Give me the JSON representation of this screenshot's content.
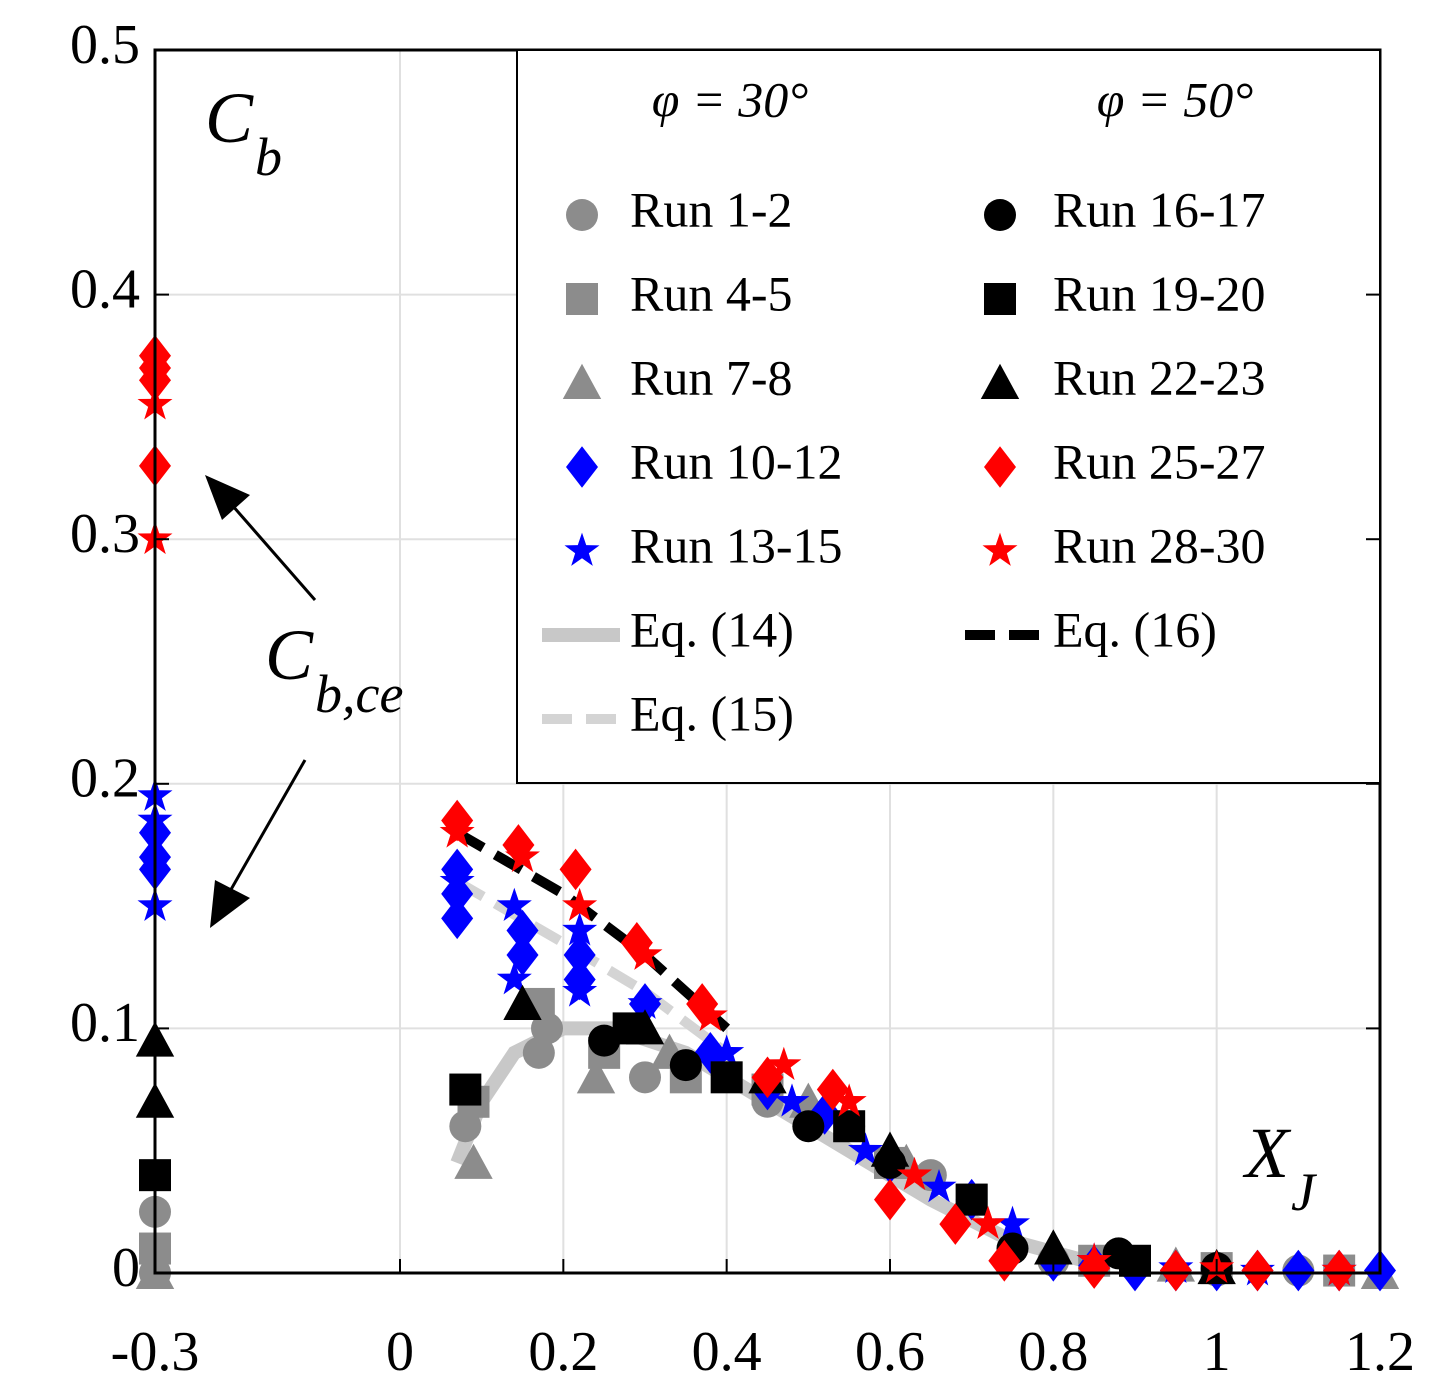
{
  "chart_data": {
    "type": "scatter",
    "xlim": [
      -0.3,
      1.2
    ],
    "ylim": [
      0,
      0.5
    ],
    "xticks": [
      -0.3,
      0,
      0.2,
      0.4,
      0.6,
      0.8,
      1,
      1.2
    ],
    "yticks": [
      0,
      0.1,
      0.2,
      0.3,
      0.4,
      0.5
    ],
    "grid": true,
    "xlabel": {
      "main": "X",
      "sub": "J"
    },
    "ylabel": {
      "main": "C",
      "sub": "b"
    },
    "annotation": {
      "main": "C",
      "sub": "b,ce"
    },
    "legend_headers": [
      "φ = 30°",
      "φ = 50°"
    ],
    "series": [
      {
        "name": "Run 1-2",
        "color": "#8c8c8c",
        "marker": "circle",
        "x": [
          -0.3,
          -0.3,
          0.08,
          0.17,
          0.18,
          0.3,
          0.45,
          0.55,
          0.65,
          0.8,
          0.9,
          1.0,
          1.1
        ],
        "values": [
          0.025,
          0.0,
          0.06,
          0.09,
          0.1,
          0.08,
          0.07,
          0.06,
          0.04,
          0.005,
          0.003,
          0.001,
          0.001
        ]
      },
      {
        "name": "Run 4-5",
        "color": "#8c8c8c",
        "marker": "square",
        "x": [
          -0.3,
          0.09,
          0.17,
          0.25,
          0.35,
          0.45,
          0.6,
          0.7,
          0.85,
          1.0,
          1.15
        ],
        "values": [
          0.01,
          0.07,
          0.11,
          0.09,
          0.08,
          0.075,
          0.045,
          0.03,
          0.005,
          0.002,
          0.001
        ]
      },
      {
        "name": "Run 7-8",
        "color": "#8c8c8c",
        "marker": "triangle",
        "x": [
          -0.3,
          0.09,
          0.24,
          0.33,
          0.5,
          0.62,
          0.8,
          0.95,
          1.2
        ],
        "values": [
          0.0,
          0.045,
          0.08,
          0.09,
          0.07,
          0.045,
          0.01,
          0.003,
          0.0
        ]
      },
      {
        "name": "Run 10-12",
        "color": "#0000ff",
        "marker": "diamond",
        "x": [
          -0.3,
          -0.3,
          -0.3,
          0.07,
          0.07,
          0.07,
          0.15,
          0.15,
          0.22,
          0.22,
          0.3,
          0.38,
          0.45,
          0.52,
          0.6,
          0.7,
          0.75,
          0.8,
          0.85,
          0.9,
          0.95,
          1.0,
          1.05,
          1.1,
          1.15,
          1.2
        ],
        "values": [
          0.165,
          0.17,
          0.18,
          0.145,
          0.155,
          0.165,
          0.13,
          0.14,
          0.12,
          0.13,
          0.11,
          0.09,
          0.075,
          0.065,
          0.045,
          0.03,
          0.01,
          0.005,
          0.003,
          0.001,
          0.001,
          0.001,
          0.001,
          0.001,
          0.001,
          0.001
        ]
      },
      {
        "name": "Run 13-15",
        "color": "#0000ff",
        "marker": "star",
        "x": [
          -0.3,
          -0.3,
          -0.3,
          0.07,
          0.14,
          0.14,
          0.22,
          0.22,
          0.3,
          0.4,
          0.48,
          0.57,
          0.66,
          0.75,
          0.85,
          0.95,
          1.05,
          1.15
        ],
        "values": [
          0.15,
          0.185,
          0.195,
          0.16,
          0.12,
          0.15,
          0.115,
          0.14,
          0.11,
          0.09,
          0.07,
          0.05,
          0.035,
          0.02,
          0.005,
          0.002,
          0.001,
          0.001
        ]
      },
      {
        "name": "Run 16-17",
        "color": "#000000",
        "marker": "circle",
        "x": [
          0.25,
          0.35,
          0.5,
          0.6,
          0.75,
          0.88,
          1.0
        ],
        "values": [
          0.095,
          0.085,
          0.06,
          0.045,
          0.01,
          0.008,
          0.002
        ]
      },
      {
        "name": "Run 19-20",
        "color": "#000000",
        "marker": "square",
        "x": [
          -0.3,
          0.08,
          0.28,
          0.4,
          0.55,
          0.7,
          0.9
        ],
        "values": [
          0.04,
          0.075,
          0.1,
          0.08,
          0.06,
          0.03,
          0.005
        ]
      },
      {
        "name": "Run 22-23",
        "color": "#000000",
        "marker": "triangle",
        "x": [
          -0.3,
          -0.3,
          0.15,
          0.3,
          0.45,
          0.6,
          0.8,
          1.0
        ],
        "values": [
          0.07,
          0.095,
          0.11,
          0.1,
          0.08,
          0.05,
          0.01,
          0.002
        ]
      },
      {
        "name": "Run 25-27",
        "color": "#ff0000",
        "marker": "diamond",
        "x": [
          -0.3,
          -0.3,
          -0.3,
          -0.3,
          0.07,
          0.145,
          0.215,
          0.29,
          0.37,
          0.45,
          0.53,
          0.6,
          0.68,
          0.74,
          0.85,
          0.95,
          1.05,
          1.15
        ],
        "values": [
          0.33,
          0.365,
          0.37,
          0.375,
          0.185,
          0.175,
          0.165,
          0.135,
          0.11,
          0.08,
          0.075,
          0.03,
          0.02,
          0.005,
          0.002,
          0.001,
          0.001,
          0.001
        ]
      },
      {
        "name": "Run 28-30",
        "color": "#ff0000",
        "marker": "star",
        "x": [
          -0.3,
          -0.3,
          0.07,
          0.15,
          0.22,
          0.3,
          0.38,
          0.47,
          0.55,
          0.63,
          0.72,
          0.85,
          1.0,
          1.15
        ],
        "values": [
          0.3,
          0.355,
          0.18,
          0.17,
          0.15,
          0.13,
          0.105,
          0.085,
          0.07,
          0.04,
          0.02,
          0.005,
          0.002,
          0.001
        ]
      }
    ],
    "lines": [
      {
        "name": "Eq. (14)",
        "color": "#c8c8c8",
        "dash": false,
        "x": [
          0.07,
          0.1,
          0.14,
          0.2,
          0.26,
          0.35,
          0.45,
          0.55,
          0.65,
          0.75,
          0.85
        ],
        "values": [
          0.045,
          0.07,
          0.09,
          0.1,
          0.1,
          0.09,
          0.07,
          0.05,
          0.03,
          0.013,
          0.004
        ]
      },
      {
        "name": "Eq. (15)",
        "color": "#d4d4d4",
        "dash": true,
        "x": [
          0.07,
          0.2,
          0.3,
          0.4
        ],
        "values": [
          0.16,
          0.135,
          0.115,
          0.09
        ]
      },
      {
        "name": "Eq. (16)",
        "color": "#000000",
        "dash": true,
        "x": [
          0.07,
          0.2,
          0.3,
          0.4
        ],
        "values": [
          0.18,
          0.155,
          0.13,
          0.1
        ]
      }
    ]
  }
}
